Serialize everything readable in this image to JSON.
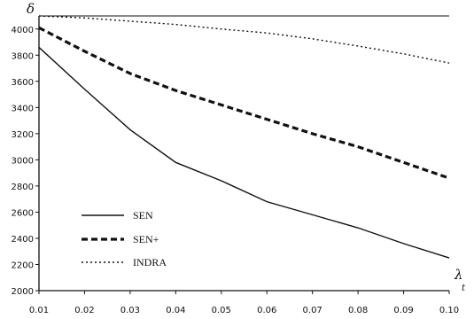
{
  "chart_data": {
    "type": "line",
    "xlabel": "λ",
    "xlabel_sub": "t",
    "ylabel": "δ",
    "x": [
      0.01,
      0.02,
      0.03,
      0.04,
      0.05,
      0.06,
      0.07,
      0.08,
      0.09,
      0.1
    ],
    "x_tick_labels": [
      "0.01",
      "0.02",
      "0.03",
      "0.04",
      "0.05",
      "0.06",
      "0.07",
      "0.08",
      "0.09",
      "0.10"
    ],
    "y_ticks": [
      2000,
      2200,
      2400,
      2600,
      2800,
      3000,
      3200,
      3400,
      3600,
      3800,
      4000
    ],
    "xlim": [
      0.01,
      0.1
    ],
    "ylim": [
      2000,
      4100
    ],
    "grid": false,
    "legend_position": "bottom-left",
    "colors": {
      "line": "#111111",
      "axis": "#111111"
    },
    "series": [
      {
        "name": "SEN",
        "style": "solid",
        "values": [
          3860,
          3540,
          3230,
          2980,
          2840,
          2680,
          2580,
          2480,
          2360,
          2250
        ]
      },
      {
        "name": "SEN+",
        "style": "dashed",
        "values": [
          4010,
          3830,
          3660,
          3530,
          3420,
          3310,
          3200,
          3100,
          2980,
          2860
        ]
      },
      {
        "name": "INDRA",
        "style": "dotted",
        "values": [
          4100,
          4085,
          4060,
          4035,
          4000,
          3970,
          3925,
          3870,
          3810,
          3740
        ]
      }
    ]
  }
}
